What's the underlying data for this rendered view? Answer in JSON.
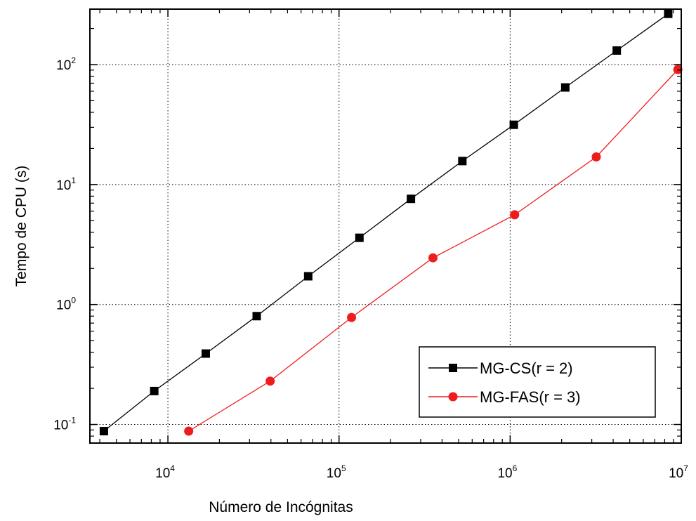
{
  "chart_data": {
    "type": "line",
    "xlabel": "Número de Incógnitas",
    "ylabel": "Tempo de CPU (s)",
    "x_scale": "log",
    "y_scale": "log",
    "xlim": [
      3500,
      10000000
    ],
    "ylim": [
      0.07,
      290
    ],
    "x_ticks": [
      {
        "value": 10000,
        "base": "10",
        "exp": "4"
      },
      {
        "value": 100000,
        "base": "10",
        "exp": "5"
      },
      {
        "value": 1000000,
        "base": "10",
        "exp": "6"
      },
      {
        "value": 10000000,
        "base": "10",
        "exp": "7"
      }
    ],
    "y_ticks": [
      {
        "value": 0.1,
        "base": "10",
        "exp": "-1"
      },
      {
        "value": 1,
        "base": "10",
        "exp": "0"
      },
      {
        "value": 10,
        "base": "10",
        "exp": "1"
      },
      {
        "value": 100,
        "base": "10",
        "exp": "2"
      }
    ],
    "grid": true,
    "legend_position": "bottom-right",
    "series": [
      {
        "name": "MG-CS(r = 2)",
        "color": "#000000",
        "marker": "square",
        "x": [
          4225,
          8321,
          16641,
          33025,
          66049,
          131585,
          263169,
          525825,
          1050625,
          2100225,
          4198401,
          8392705
        ],
        "y": [
          0.088,
          0.19,
          0.39,
          0.8,
          1.72,
          3.6,
          7.6,
          15.7,
          31.5,
          64.5,
          131,
          265
        ]
      },
      {
        "name": "MG-FAS(r = 3)",
        "color": "#ee1c1c",
        "marker": "circle",
        "x": [
          13225,
          39601,
          118336,
          354025,
          1062961,
          3186225,
          9554281
        ],
        "y": [
          0.088,
          0.23,
          0.78,
          2.45,
          5.6,
          17,
          91
        ]
      }
    ]
  }
}
